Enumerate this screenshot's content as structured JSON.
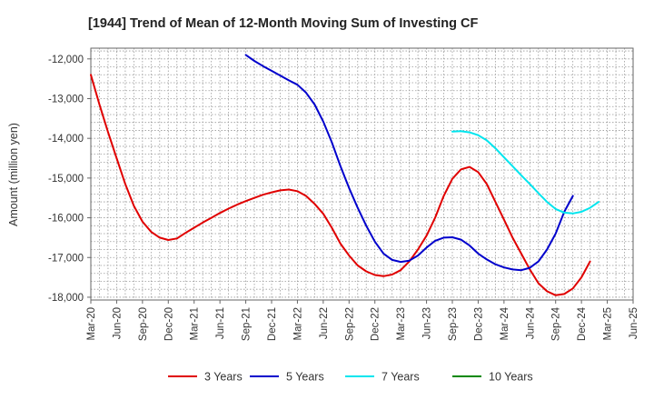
{
  "chart_data": {
    "type": "line",
    "title": "[1944]  Trend of Mean of 12-Month Moving Sum of Investing CF",
    "xlabel": "",
    "ylabel": "Amount (million yen)",
    "ylim": [
      -18000,
      -11800
    ],
    "yticks": [
      -12000,
      -13000,
      -14000,
      -15000,
      -16000,
      -17000,
      -18000
    ],
    "ytick_labels": [
      "-12,000",
      "-13,000",
      "-14,000",
      "-15,000",
      "-16,000",
      "-17,000",
      "-18,000"
    ],
    "xticks": [
      "Mar-20",
      "Jun-20",
      "Sep-20",
      "Dec-20",
      "Mar-21",
      "Jun-21",
      "Sep-21",
      "Dec-21",
      "Mar-22",
      "Jun-22",
      "Sep-22",
      "Dec-22",
      "Mar-23",
      "Jun-23",
      "Sep-23",
      "Dec-23",
      "Mar-24",
      "Jun-24",
      "Sep-24",
      "Dec-24",
      "Mar-25",
      "Jun-25"
    ],
    "grid": true,
    "legend_position": "bottom",
    "series": [
      {
        "name": "3 Years",
        "color": "#e00000",
        "start_month_index": 0,
        "values": [
          -12400,
          -13150,
          -13850,
          -14500,
          -15150,
          -15700,
          -16100,
          -16350,
          -16500,
          -16560,
          -16520,
          -16380,
          -16250,
          -16120,
          -16000,
          -15880,
          -15770,
          -15670,
          -15580,
          -15500,
          -15420,
          -15360,
          -15310,
          -15290,
          -15330,
          -15450,
          -15650,
          -15900,
          -16250,
          -16650,
          -16950,
          -17200,
          -17350,
          -17440,
          -17470,
          -17430,
          -17320,
          -17100,
          -16800,
          -16450,
          -16000,
          -15450,
          -15020,
          -14780,
          -14720,
          -14850,
          -15150,
          -15600,
          -16050,
          -16500,
          -16900,
          -17300,
          -17650,
          -17850,
          -17950,
          -17920,
          -17780,
          -17500,
          -17100
        ]
      },
      {
        "name": "5 Years",
        "color": "#0000cc",
        "start_month_index": 18,
        "values": [
          -11900,
          -12050,
          -12180,
          -12300,
          -12420,
          -12540,
          -12650,
          -12850,
          -13150,
          -13580,
          -14100,
          -14700,
          -15250,
          -15750,
          -16200,
          -16600,
          -16900,
          -17060,
          -17110,
          -17080,
          -16950,
          -16750,
          -16580,
          -16500,
          -16490,
          -16550,
          -16700,
          -16900,
          -17050,
          -17170,
          -17250,
          -17300,
          -17320,
          -17260,
          -17100,
          -16800,
          -16400,
          -15850,
          -15450
        ]
      },
      {
        "name": "7 Years",
        "color": "#00e5ee",
        "start_month_index": 42,
        "values": [
          -13830,
          -13820,
          -13850,
          -13920,
          -14050,
          -14250,
          -14480,
          -14700,
          -14930,
          -15150,
          -15380,
          -15600,
          -15780,
          -15870,
          -15890,
          -15850,
          -15750,
          -15600
        ]
      },
      {
        "name": "10 Years",
        "color": "#008800",
        "start_month_index": 0,
        "values": []
      }
    ]
  }
}
